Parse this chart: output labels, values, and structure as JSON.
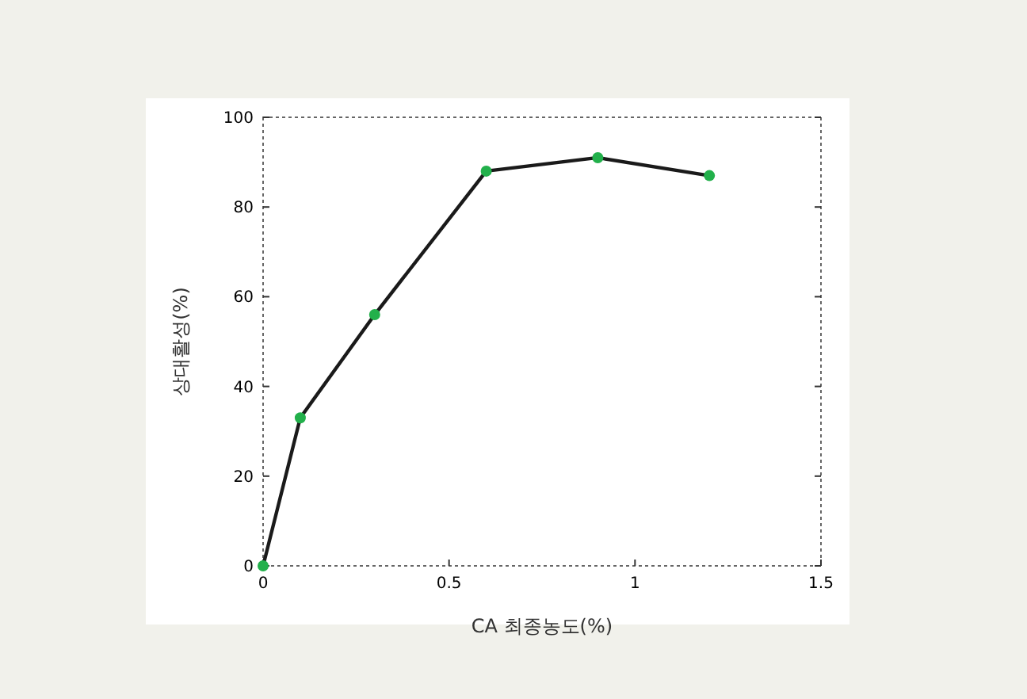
{
  "chart_data": {
    "type": "line",
    "xlabel": "CA 최종농도(%)",
    "ylabel": "상대활성(%)",
    "x": [
      0,
      0.1,
      0.3,
      0.6,
      0.9,
      1.2
    ],
    "series": [
      {
        "color": "#1a1a1a",
        "colors": [
          "#22b04b",
          "#22b04b",
          "#22b04b",
          "#22b04b",
          "#22b04b",
          "#22b04b"
        ],
        "values": [
          0,
          33,
          56,
          88,
          91,
          87
        ]
      }
    ],
    "marker": "circle",
    "line_style": "solid",
    "xlim": [
      0,
      1.5
    ],
    "xticks": [
      0,
      0.5,
      1,
      1.5
    ],
    "ylim": [
      0,
      100
    ],
    "yticks": [
      0,
      20,
      40,
      60,
      80,
      100
    ],
    "grid": false
  }
}
